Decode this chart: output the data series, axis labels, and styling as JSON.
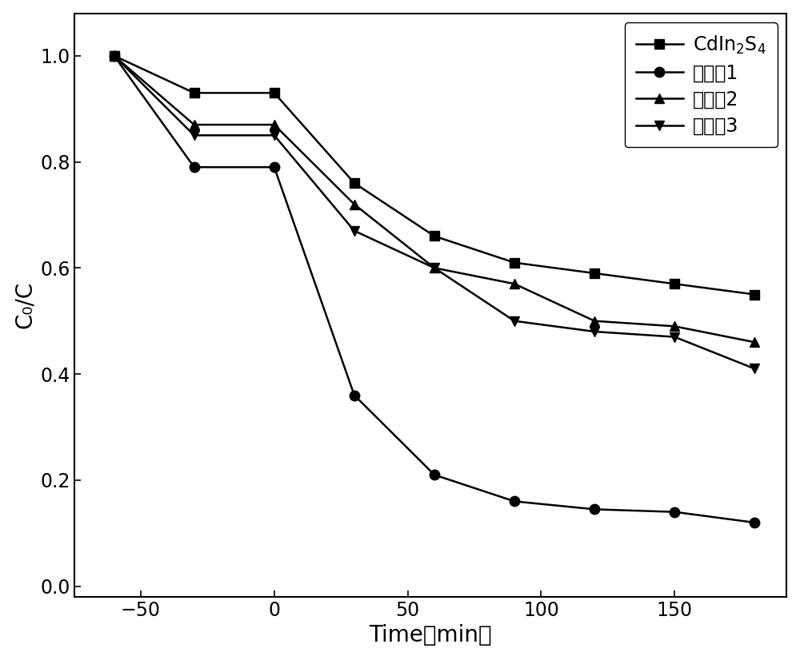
{
  "series": [
    {
      "label": "CdIn₂S₄",
      "marker": "s",
      "x": [
        -60,
        -30,
        0,
        30,
        60,
        90,
        120,
        150,
        180
      ],
      "y": [
        1.0,
        0.93,
        0.93,
        0.76,
        0.66,
        0.61,
        0.59,
        0.57,
        0.55
      ]
    },
    {
      "label": "实施奡1",
      "marker": "o",
      "x": [
        -60,
        -30,
        0,
        30,
        60,
        90,
        120,
        150,
        180
      ],
      "y": [
        1.0,
        0.79,
        0.79,
        0.36,
        0.21,
        0.16,
        0.145,
        0.14,
        0.12
      ]
    },
    {
      "label": "实施奡2",
      "marker": "^",
      "x": [
        -60,
        -30,
        0,
        30,
        60,
        90,
        120,
        150,
        180
      ],
      "y": [
        1.0,
        0.87,
        0.87,
        0.72,
        0.6,
        0.57,
        0.5,
        0.49,
        0.46
      ]
    },
    {
      "label": "实施奡3",
      "marker": "v",
      "x": [
        -60,
        -30,
        0,
        30,
        60,
        90,
        120,
        150,
        180
      ],
      "y": [
        1.0,
        0.85,
        0.85,
        0.67,
        0.6,
        0.5,
        0.48,
        0.47,
        0.41
      ]
    }
  ],
  "xlabel": "Time（min）",
  "ylabel": "C₀/C",
  "xlim": [
    -75,
    192
  ],
  "ylim": [
    -0.02,
    1.08
  ],
  "xticks": [
    -50,
    0,
    50,
    100,
    150
  ],
  "yticks": [
    0.0,
    0.2,
    0.4,
    0.6,
    0.8,
    1.0
  ],
  "line_color": "#000000",
  "line_width": 1.8,
  "marker_size": 9,
  "legend_fontsize": 17,
  "axis_fontsize": 20,
  "tick_fontsize": 17
}
